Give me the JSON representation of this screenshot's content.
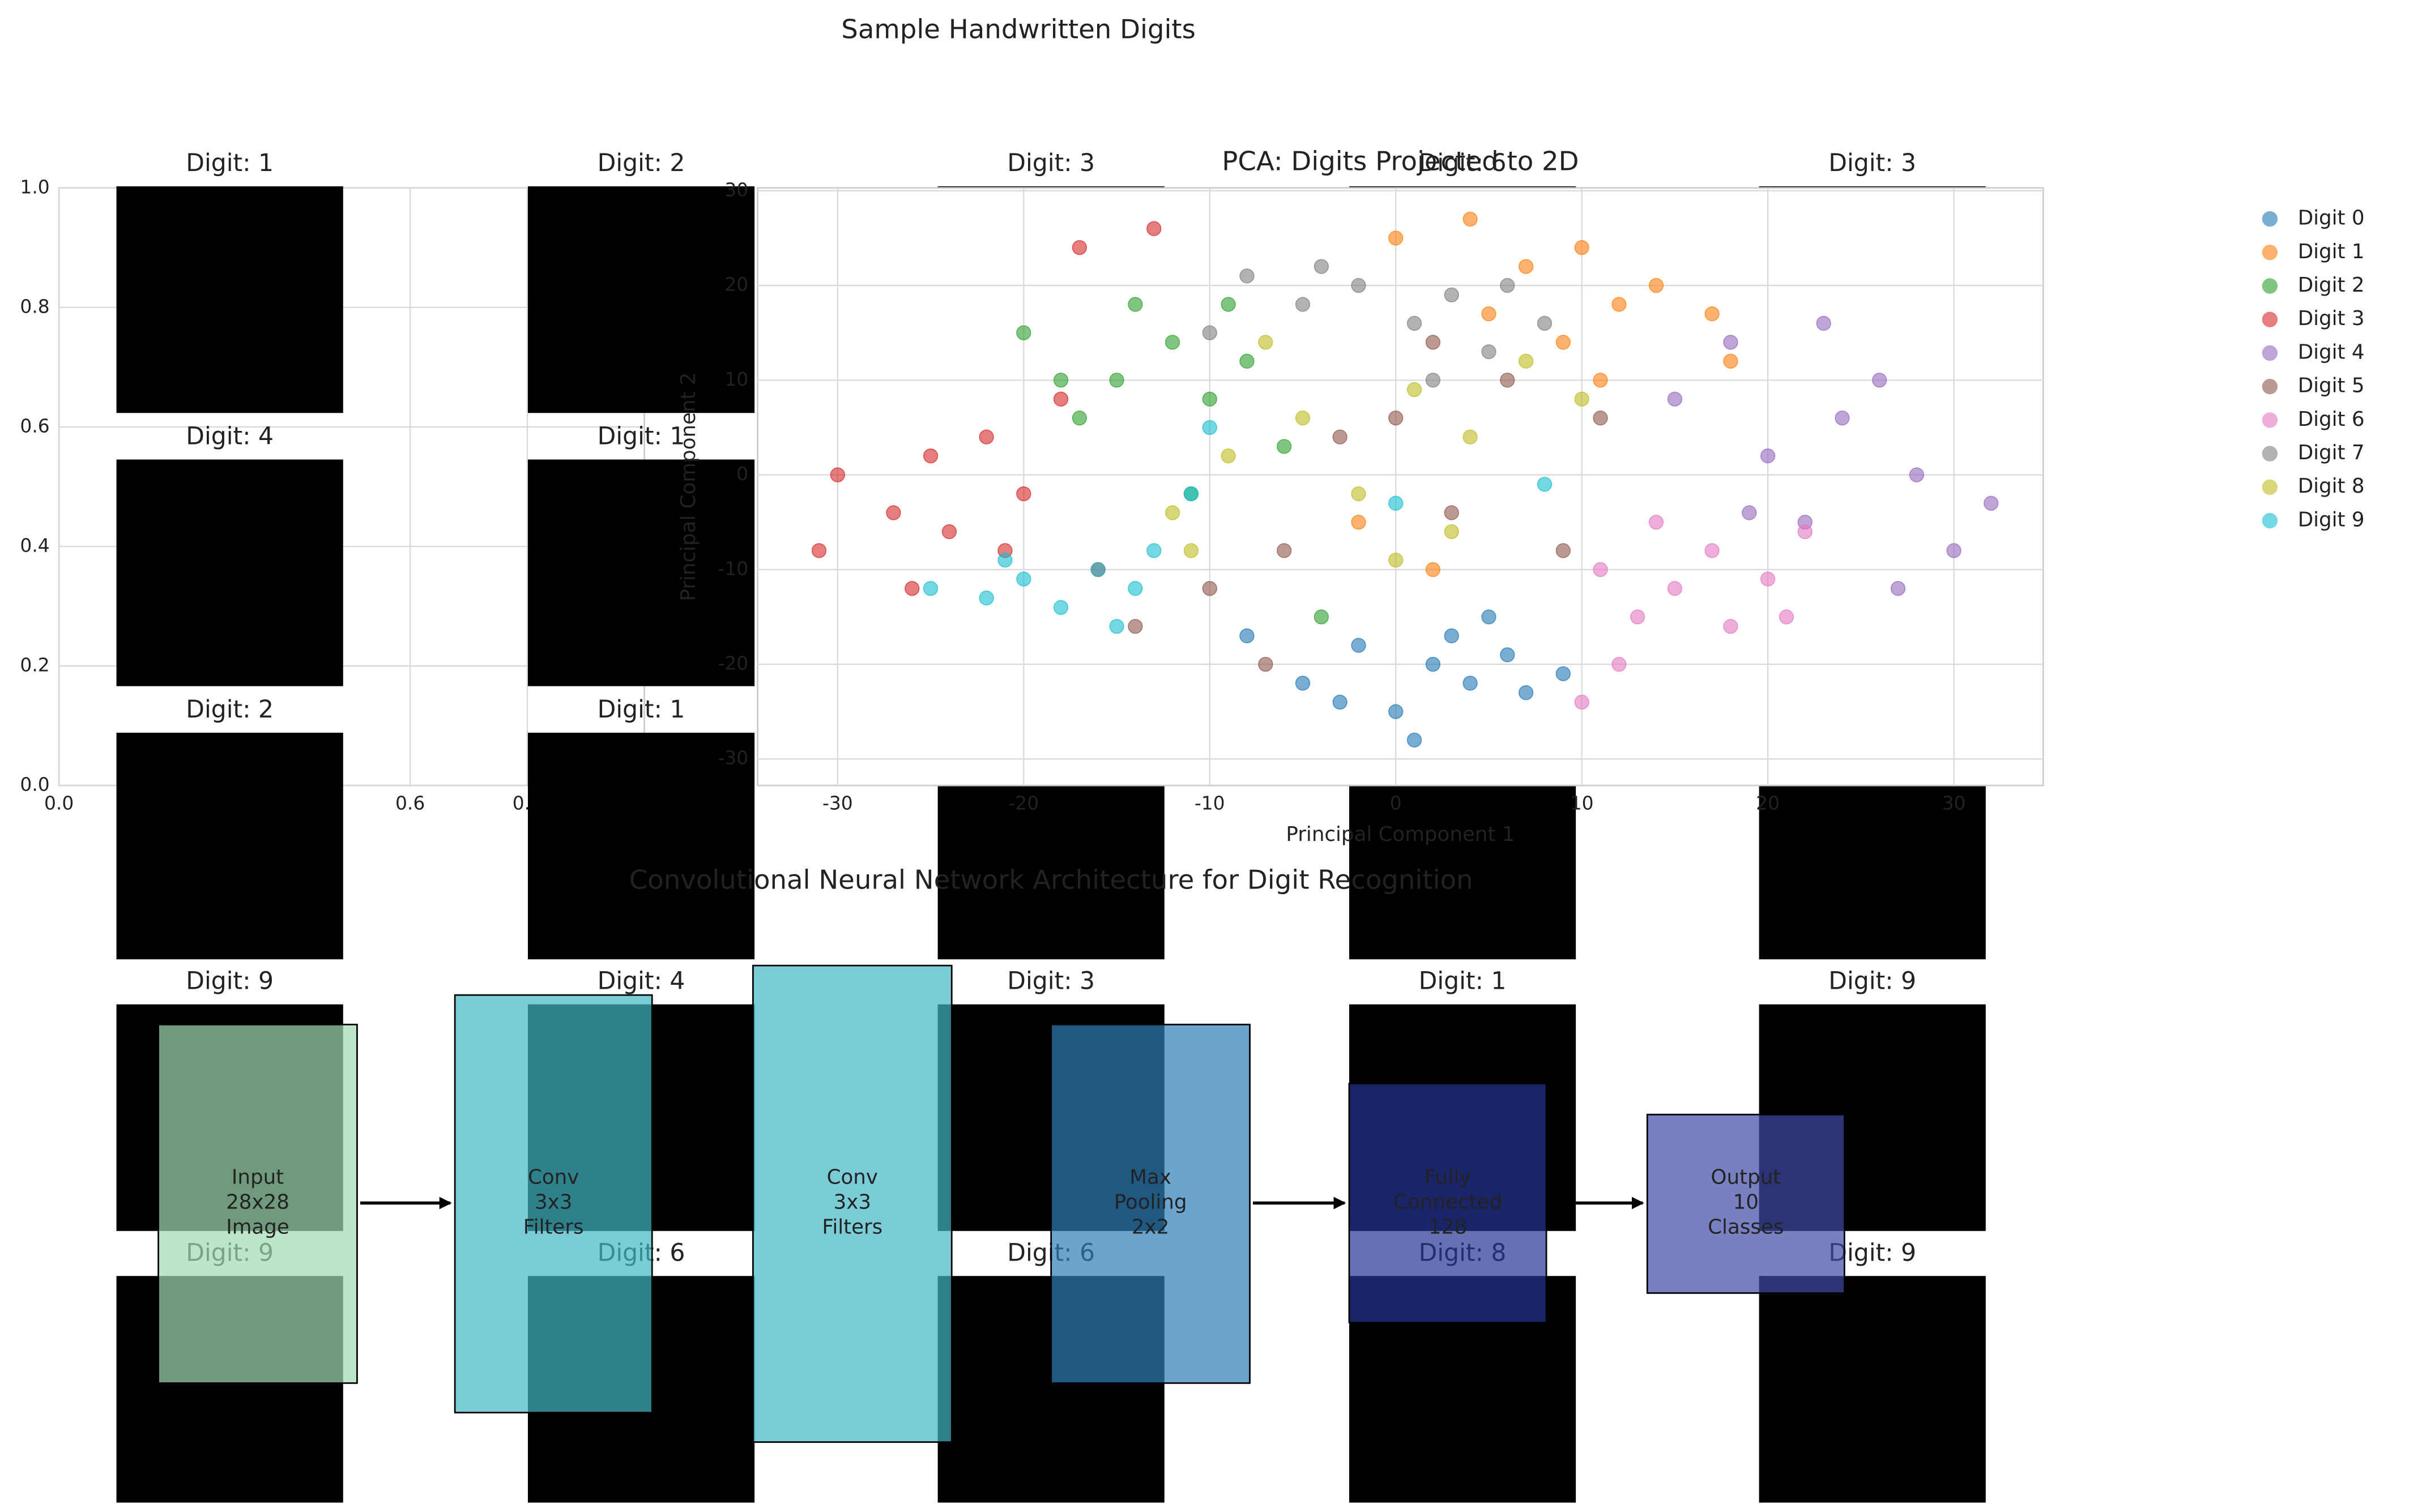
{
  "title": "Sample Handwritten Digits",
  "digit_titles": [
    "Digit: 1",
    "Digit: 2",
    "Digit: 3",
    "Digit: 6",
    "Digit: 3",
    "Digit: 4",
    "Digit: 1",
    null,
    null,
    null,
    "Digit: 2",
    "Digit: 1",
    null,
    null,
    null,
    "Digit: 9",
    "Digit: 4",
    "Digit: 3",
    "Digit: 1",
    "Digit: 9",
    "Digit: 9",
    "Digit: 6",
    "Digit: 6",
    "Digit: 8",
    "Digit: 9"
  ],
  "chart_data": [
    {
      "type": "empty",
      "xlim": [
        0,
        1
      ],
      "ylim": [
        0,
        1
      ],
      "grid": true,
      "xticks": [
        {
          "value": 0,
          "label": "0.0"
        },
        {
          "value": 0.6,
          "label": "0.6"
        },
        {
          "value": 0.8,
          "label": "0.8"
        }
      ],
      "yticks": [
        {
          "value": 0,
          "label": "0.0"
        },
        {
          "value": 0.2,
          "label": "0.2"
        },
        {
          "value": 0.4,
          "label": "0.4"
        },
        {
          "value": 0.6,
          "label": "0.6"
        },
        {
          "value": 0.8,
          "label": "0.8"
        },
        {
          "value": 1.0,
          "label": "1.0"
        }
      ]
    },
    {
      "type": "scatter",
      "title": "PCA: Digits Projected to 2D",
      "x_label": "Principal Component 1",
      "y_label": "Principal Component 2",
      "xlim": [
        -34.3,
        34.8
      ],
      "ylim": [
        -32.8,
        30.3
      ],
      "xticks": [
        -30,
        -20,
        -10,
        0,
        10,
        20,
        30
      ],
      "yticks": [
        -30,
        -20,
        -10,
        0,
        10,
        20,
        30
      ],
      "grid": true,
      "legend": "outside-right",
      "series": [
        {
          "name": "Digit 0",
          "color": "#1f77b4",
          "x": [
            -5,
            -2,
            0,
            2,
            4,
            6,
            -3,
            3,
            7,
            1,
            -8,
            5,
            9
          ],
          "y": [
            -22,
            -18,
            -25,
            -20,
            -22,
            -19,
            -24,
            -17,
            -23,
            -28,
            -17,
            -15,
            -21
          ]
        },
        {
          "name": "Digit 1",
          "color": "#ff7f0e",
          "x": [
            0,
            4,
            7,
            10,
            12,
            9,
            14,
            17,
            5,
            11,
            -2,
            2,
            18
          ],
          "y": [
            25,
            27,
            22,
            24,
            18,
            14,
            20,
            17,
            17,
            10,
            -5,
            -10,
            12
          ]
        },
        {
          "name": "Digit 2",
          "color": "#2ca02c",
          "x": [
            -20,
            -15,
            -12,
            -10,
            -8,
            -14,
            -17,
            -6,
            -11,
            -4,
            -18,
            -9
          ],
          "y": [
            15,
            10,
            14,
            8,
            12,
            18,
            6,
            3,
            -2,
            -15,
            10,
            18
          ]
        },
        {
          "name": "Digit 3",
          "color": "#d62728",
          "x": [
            -31,
            -30,
            -27,
            -25,
            -24,
            -22,
            -20,
            -18,
            -16,
            -13,
            -17,
            -26,
            -21
          ],
          "y": [
            -8,
            0,
            -4,
            2,
            -6,
            4,
            -2,
            8,
            -10,
            26,
            24,
            -12,
            -8
          ]
        },
        {
          "name": "Digit 4",
          "color": "#9467bd",
          "x": [
            15,
            18,
            20,
            22,
            24,
            26,
            28,
            30,
            23,
            19,
            27,
            32
          ],
          "y": [
            8,
            14,
            2,
            -5,
            6,
            10,
            0,
            -8,
            16,
            -4,
            -12,
            -3
          ]
        },
        {
          "name": "Digit 5",
          "color": "#8c564b",
          "x": [
            -3,
            -6,
            0,
            3,
            6,
            -10,
            9,
            -14,
            2,
            -7,
            11
          ],
          "y": [
            4,
            -8,
            6,
            -4,
            10,
            -12,
            -8,
            -16,
            14,
            -20,
            6
          ]
        },
        {
          "name": "Digit 6",
          "color": "#e377c2",
          "x": [
            11,
            13,
            15,
            17,
            18,
            20,
            12,
            22,
            14,
            10,
            21
          ],
          "y": [
            -10,
            -15,
            -12,
            -8,
            -16,
            -11,
            -20,
            -6,
            -5,
            -24,
            -15
          ]
        },
        {
          "name": "Digit 7",
          "color": "#7f7f7f",
          "x": [
            -8,
            -5,
            -2,
            1,
            3,
            5,
            -10,
            8,
            -4,
            6,
            2
          ],
          "y": [
            21,
            18,
            20,
            16,
            19,
            13,
            15,
            16,
            22,
            20,
            10
          ]
        },
        {
          "name": "Digit 8",
          "color": "#bcbd22",
          "x": [
            -12,
            -9,
            -5,
            -2,
            1,
            4,
            7,
            -7,
            3,
            10,
            -11,
            0
          ],
          "y": [
            -4,
            2,
            6,
            -2,
            9,
            4,
            12,
            14,
            -6,
            8,
            -8,
            -9
          ]
        },
        {
          "name": "Digit 9",
          "color": "#17becf",
          "x": [
            -25,
            -22,
            -20,
            -18,
            -16,
            -14,
            -13,
            -15,
            -21,
            -10,
            -11,
            0,
            8
          ],
          "y": [
            -12,
            -13,
            -11,
            -14,
            -10,
            -12,
            -8,
            -16,
            -9,
            5,
            -2,
            -3,
            -1
          ]
        }
      ]
    }
  ],
  "diagram": {
    "title": "Convolutional Neural Network Architecture for Digit Recognition",
    "nodes": [
      {
        "label": [
          "Input",
          "28x28",
          "Image"
        ],
        "color": "#a1dab4"
      },
      {
        "label": [
          "Conv",
          "3x3",
          "Filters"
        ],
        "color": "#41b6c4"
      },
      {
        "label": [
          "Conv",
          "3x3",
          "Filters"
        ],
        "color": "#41b6c4"
      },
      {
        "label": [
          "Max",
          "Pooling",
          "2x2"
        ],
        "color": "#2c7fb8"
      },
      {
        "label": [
          "Fully",
          "Connected",
          "128"
        ],
        "color": "#253494"
      },
      {
        "label": [
          "Output",
          "10",
          "Classes"
        ],
        "color": "#3f4aa8"
      }
    ]
  }
}
